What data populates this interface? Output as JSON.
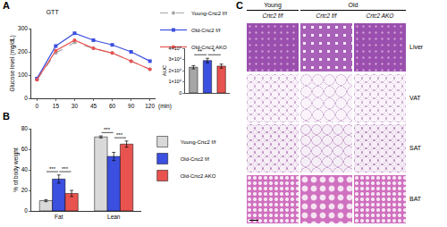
{
  "panel_labels": [
    "A",
    "B",
    "C"
  ],
  "chart_data": [
    {
      "type": "line",
      "title": "GTT",
      "x_label": "(min)",
      "y_label": "Glucose level (mg/dL)",
      "categories": [
        "0",
        "15",
        "30",
        "45",
        "60",
        "90",
        "120"
      ],
      "series": [
        {
          "name": "Young-Crtc2 f/f",
          "color": "#a6a6a6",
          "marker": "circle",
          "line_style": "dashed",
          "values": [
            80,
            195,
            240,
            215,
            195,
            160,
            125
          ]
        },
        {
          "name": "Old-Crtc2 f/f",
          "color": "#3b4fe0",
          "marker": "square",
          "line_style": "solid",
          "values": [
            85,
            225,
            280,
            250,
            230,
            200,
            160
          ]
        },
        {
          "name": "Old-Crtc2 AKO",
          "color": "#e8534f",
          "marker": "circle",
          "line_style": "solid",
          "values": [
            80,
            205,
            250,
            215,
            195,
            160,
            125
          ]
        }
      ],
      "ylim": [
        0,
        300
      ],
      "yticks": [
        0,
        100,
        200,
        300
      ],
      "grid": false,
      "legend": "top right"
    },
    {
      "type": "bar",
      "y_label": "AUC",
      "categories": [
        null,
        null,
        null
      ],
      "values": [
        23000,
        29000,
        24000
      ],
      "errors": [
        1500,
        2000,
        1800
      ],
      "colors": [
        "#a6a6a6",
        "#3b4fe0",
        "#e8534f"
      ],
      "ylim": [
        0,
        40000
      ],
      "yticks": [
        0,
        {
          "value": 10000,
          "label": "1×10⁴"
        },
        {
          "value": 20000,
          "label": "2×10⁴"
        },
        {
          "value": 30000,
          "label": "3×10⁴"
        },
        {
          "value": 40000,
          "label": "4×10⁴"
        }
      ],
      "grid": false,
      "tick_labels": "y",
      "annotations": [
        {
          "text": "**",
          "x": [
            0,
            1
          ]
        },
        {
          "text": "*",
          "x": [
            1,
            2
          ]
        }
      ]
    },
    {
      "type": "bar",
      "y_label": "% of body weight",
      "categories": [
        "Fat",
        "Lean"
      ],
      "series": [
        {
          "name": "Young-Crtc2 f/f",
          "color": "#d9d9d9",
          "values": [
            10,
            72
          ],
          "errors": [
            1,
            1
          ]
        },
        {
          "name": "Old-Crtc2 f/f",
          "color": "#3b4fe0",
          "values": [
            31,
            53
          ],
          "errors": [
            4,
            4
          ]
        },
        {
          "name": "Old-Crtc2 AKO",
          "color": "#e8534f",
          "values": [
            17,
            65
          ],
          "errors": [
            3,
            3
          ]
        }
      ],
      "ylim": [
        0,
        80
      ],
      "yticks": [
        0,
        20,
        40,
        60,
        80
      ],
      "grid": false,
      "legend": "right",
      "annotations": [
        {
          "category": "Fat",
          "series": [
            0,
            1
          ],
          "text": "***"
        },
        {
          "category": "Fat",
          "series": [
            1,
            2
          ],
          "text": "***"
        },
        {
          "category": "Lean",
          "series": [
            0,
            1
          ],
          "text": "***"
        },
        {
          "category": "Lean",
          "series": [
            1,
            2
          ],
          "text": "***"
        }
      ]
    }
  ],
  "histology": {
    "columns": [
      {
        "group": "Young",
        "genotype": "Crtc2 f/f"
      },
      {
        "group": "Old",
        "genotype": "Crtc2 f/f"
      },
      {
        "group": "Old",
        "genotype": "Crtc2 AKO"
      }
    ],
    "rows": [
      "Liver",
      "VAT",
      "SAT",
      "BAT"
    ]
  }
}
